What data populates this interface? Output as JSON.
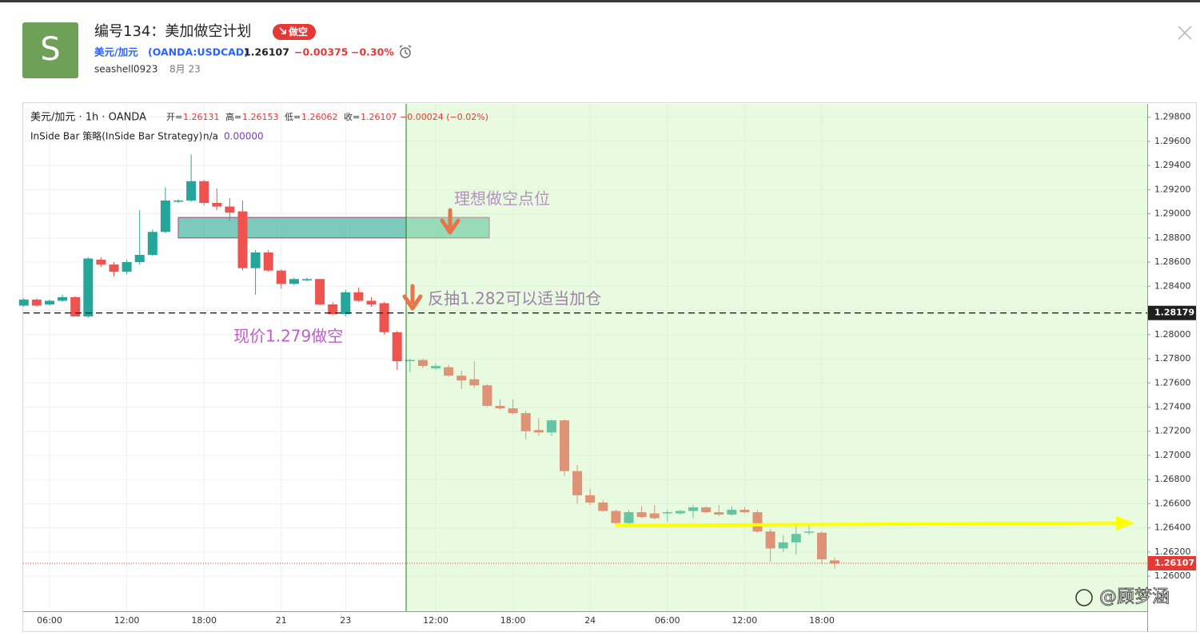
{
  "header": {
    "avatar": "S",
    "title": "编号134：美加做空计划",
    "badge": "做空",
    "symbol": "美元/加元",
    "ticker": "(OANDA:USDCAD)",
    "price": "1.26107",
    "change": "−0.00375",
    "change_pct": "−0.30%",
    "author": "seashell0923",
    "date": "8月 23"
  },
  "chart_data": {
    "type": "candlestick",
    "legend": {
      "title": "美元/加元 · 1h · OANDA",
      "items": [
        [
          "开=",
          "1.26131"
        ],
        [
          "高=",
          "1.26153"
        ],
        [
          "低=",
          "1.26062"
        ],
        [
          "收=",
          "1.26107"
        ]
      ],
      "change": "−0.00024 (−0.02%)"
    },
    "indicator": {
      "name": "InSide Bar 策略(InSide Bar Strategy)",
      "status": "n/a",
      "value": "0.00000"
    },
    "categories": [
      null,
      null,
      "06:00",
      null,
      null,
      null,
      null,
      null,
      "12:00",
      null,
      null,
      null,
      null,
      null,
      "18:00",
      null,
      null,
      null,
      null,
      null,
      "21",
      null,
      null,
      null,
      null,
      "23",
      null,
      null,
      null,
      null,
      null,
      null,
      "12:00",
      null,
      null,
      null,
      null,
      null,
      "18:00",
      null,
      null,
      null,
      null,
      null,
      "24",
      null,
      null,
      null,
      null,
      null,
      "06:00",
      null,
      null,
      null,
      null,
      null,
      "12:00",
      null,
      null,
      null,
      null,
      null,
      "18:00",
      null
    ],
    "open": [
      1.2824,
      1.2829,
      1.2825,
      1.2828,
      1.2831,
      1.2815,
      1.2862,
      1.2858,
      1.2852,
      1.286,
      1.2866,
      1.2885,
      1.291,
      1.2911,
      1.2927,
      1.2909,
      1.2906,
      1.2902,
      1.2855,
      1.2868,
      1.2853,
      1.2842,
      1.2845,
      1.2846,
      1.2825,
      1.2817,
      1.2835,
      1.2828,
      1.2826,
      1.2802,
      1.2778,
      1.2779,
      1.2772,
      1.2773,
      1.2766,
      1.2763,
      1.2758,
      1.2741,
      1.2739,
      1.2735,
      1.2721,
      1.2719,
      1.2729,
      1.2687,
      1.2667,
      1.2661,
      1.2654,
      1.2644,
      1.2653,
      1.2652,
      1.2652,
      1.2652,
      1.2654,
      1.2657,
      1.2653,
      1.2651,
      1.2655,
      1.2653,
      1.2637,
      1.2623,
      1.2628,
      1.2636,
      1.2636,
      1.26131
    ],
    "high": [
      1.283,
      1.283,
      1.2829,
      1.2833,
      1.2832,
      1.2864,
      1.2864,
      1.286,
      1.2862,
      1.2903,
      1.2887,
      1.2922,
      1.2912,
      1.2949,
      1.2928,
      1.2921,
      1.2913,
      1.2911,
      1.287,
      1.287,
      1.2854,
      1.2847,
      1.2847,
      1.2846,
      1.2827,
      1.2837,
      1.2839,
      1.2831,
      1.2827,
      1.2803,
      1.278,
      1.278,
      1.2776,
      1.2775,
      1.277,
      1.2778,
      1.2759,
      1.2746,
      1.2746,
      1.2737,
      1.2731,
      1.273,
      1.273,
      1.2692,
      1.2672,
      1.2663,
      1.2655,
      1.2655,
      1.2658,
      1.2659,
      1.2655,
      1.2655,
      1.2659,
      1.2658,
      1.2659,
      1.2658,
      1.2657,
      1.2655,
      1.2639,
      1.2634,
      1.2642,
      1.2642,
      1.2637,
      1.26153
    ],
    "low": [
      1.2823,
      1.2823,
      1.2824,
      1.2827,
      1.2815,
      1.2814,
      1.2856,
      1.2848,
      1.285,
      1.2858,
      1.2865,
      1.2884,
      1.2909,
      1.291,
      1.2907,
      1.2903,
      1.2894,
      1.2853,
      1.2833,
      1.2852,
      1.2838,
      1.2841,
      1.2844,
      1.2824,
      1.2816,
      1.2815,
      1.2827,
      1.2823,
      1.28,
      1.2771,
      1.2769,
      1.2772,
      1.2771,
      1.2765,
      1.2755,
      1.2756,
      1.274,
      1.2738,
      1.2734,
      1.2713,
      1.2716,
      1.2716,
      1.2683,
      1.266,
      1.2659,
      1.2653,
      1.2642,
      1.2643,
      1.2648,
      1.2647,
      1.2645,
      1.2651,
      1.2648,
      1.2652,
      1.265,
      1.265,
      1.2652,
      1.2636,
      1.2612,
      1.262,
      1.2618,
      1.2634,
      1.261,
      1.26062
    ],
    "close": [
      1.2829,
      1.2824,
      1.2828,
      1.2831,
      1.2815,
      1.2863,
      1.2858,
      1.2852,
      1.286,
      1.2866,
      1.2885,
      1.2911,
      1.2911,
      1.2927,
      1.2909,
      1.2906,
      1.2901,
      1.2855,
      1.2868,
      1.2853,
      1.2842,
      1.2846,
      1.2846,
      1.2825,
      1.2817,
      1.2835,
      1.2828,
      1.2825,
      1.2802,
      1.2778,
      1.2779,
      1.2774,
      1.2774,
      1.2766,
      1.2762,
      1.2758,
      1.2741,
      1.2739,
      1.2735,
      1.272,
      1.2719,
      1.2729,
      1.2687,
      1.2667,
      1.2661,
      1.2654,
      1.2644,
      1.2653,
      1.2649,
      1.2648,
      1.2653,
      1.2654,
      1.2657,
      1.2653,
      1.2651,
      1.2655,
      1.2653,
      1.2637,
      1.2623,
      1.2628,
      1.2635,
      1.2637,
      1.2614,
      1.26107
    ],
    "up_color": "#26a69a",
    "down_color": "#ef5350",
    "ylim": [
      1.2571,
      1.2991
    ],
    "yticks": [
      {
        "value": 1.298,
        "label": "1.29800"
      },
      {
        "value": 1.296,
        "label": "1.29600"
      },
      {
        "value": 1.294,
        "label": "1.29400"
      },
      {
        "value": 1.292,
        "label": "1.29200"
      },
      {
        "value": 1.29,
        "label": "1.29000"
      },
      {
        "value": 1.288,
        "label": "1.28800"
      },
      {
        "value": 1.286,
        "label": "1.28600"
      },
      {
        "value": 1.284,
        "label": "1.28400"
      },
      {
        "value": 1.282,
        "label": "1.28200"
      },
      {
        "value": 1.28,
        "label": "1.28000"
      },
      {
        "value": 1.278,
        "label": "1.27800"
      },
      {
        "value": 1.276,
        "label": "1.27600"
      },
      {
        "value": 1.274,
        "label": "1.27400"
      },
      {
        "value": 1.272,
        "label": "1.27200"
      },
      {
        "value": 1.27,
        "label": "1.27000"
      },
      {
        "value": 1.268,
        "label": "1.26800"
      },
      {
        "value": 1.266,
        "label": "1.26600"
      },
      {
        "value": 1.264,
        "label": "1.26400"
      },
      {
        "value": 1.262,
        "label": "1.26200"
      },
      {
        "value": 1.26,
        "label": "1.26000"
      }
    ],
    "grid": true,
    "ref_line": 1.28179,
    "last_price": 1.26107,
    "zone": [
      1.2897,
      1.288
    ],
    "trend_arrow": [
      1.2642,
      1.2644
    ],
    "annotations": [
      "理想做空点位",
      "反抽1.282可以适当加仓",
      "现价1.279做空"
    ]
  },
  "watermark": "@顾梦涵"
}
